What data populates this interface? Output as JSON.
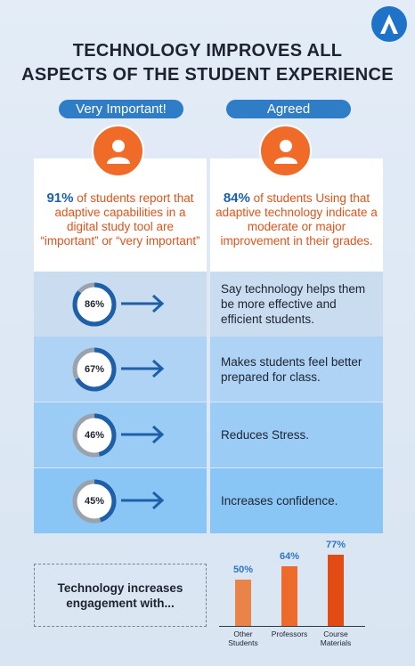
{
  "title_lines": [
    "TECHNOLOGY IMPROVES ALL",
    "ASPECTS OF THE STUDENT EXPERIENCE"
  ],
  "pills": {
    "left": "Very Important!",
    "right": "Agreed"
  },
  "cards": {
    "left": {
      "pct": "91%",
      "text": " of students report that adaptive capabilities in a digital study tool are “important” or “very important”"
    },
    "right": {
      "pct": "84%",
      "text": " of students Using that adaptive technology indicate a moderate or major improvement in their grades."
    }
  },
  "rows": [
    {
      "value": 86,
      "label": "86%",
      "text": "Say technology helps them be more effective and efficient students."
    },
    {
      "value": 67,
      "label": "67%",
      "text": "Makes students feel better prepared for class."
    },
    {
      "value": 46,
      "label": "46%",
      "text": "Reduces Stress."
    },
    {
      "value": 45,
      "label": "45%",
      "text": "Increases confidence."
    }
  ],
  "engagement_text": "Technology increases engagement with...",
  "chart_data": {
    "type": "bar",
    "categories": [
      "Other Students",
      "Professors",
      "Course Materials"
    ],
    "values": [
      50,
      64,
      77
    ],
    "value_labels": [
      "50%",
      "64%",
      "77%"
    ],
    "ylim": [
      0,
      100
    ],
    "colors": [
      "#e8834a",
      "#ec6a2a",
      "#e24b12"
    ]
  },
  "colors": {
    "accent_blue": "#2f7dc6",
    "accent_orange": "#f06a28"
  },
  "icons": {
    "logo": "a-logo-icon",
    "avatar": "user-silhouette-icon",
    "arrow": "right-arrow-icon"
  }
}
